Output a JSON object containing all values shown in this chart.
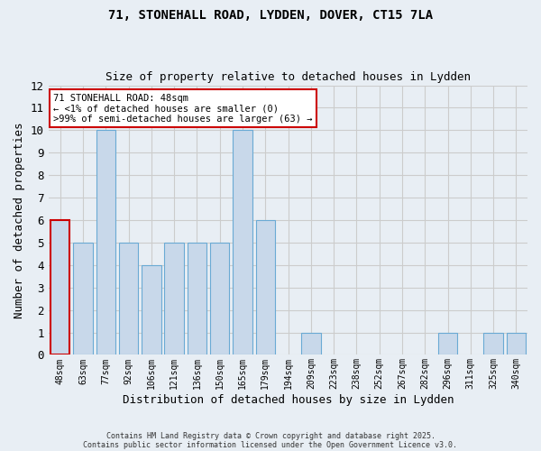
{
  "title": "71, STONEHALL ROAD, LYDDEN, DOVER, CT15 7LA",
  "subtitle": "Size of property relative to detached houses in Lydden",
  "xlabel": "Distribution of detached houses by size in Lydden",
  "ylabel": "Number of detached properties",
  "categories": [
    "48sqm",
    "63sqm",
    "77sqm",
    "92sqm",
    "106sqm",
    "121sqm",
    "136sqm",
    "150sqm",
    "165sqm",
    "179sqm",
    "194sqm",
    "209sqm",
    "223sqm",
    "238sqm",
    "252sqm",
    "267sqm",
    "282sqm",
    "296sqm",
    "311sqm",
    "325sqm",
    "340sqm"
  ],
  "values": [
    6,
    5,
    10,
    5,
    4,
    5,
    5,
    5,
    10,
    6,
    0,
    1,
    0,
    0,
    0,
    0,
    0,
    1,
    0,
    1,
    1
  ],
  "highlight_index": 0,
  "bar_color": "#c8d8ea",
  "bar_edge_color": "#6aaad4",
  "highlight_edge_color": "#cc0000",
  "highlight_edge_width": 1.5,
  "bar_edge_width": 0.8,
  "ylim": [
    0,
    12
  ],
  "yticks": [
    0,
    1,
    2,
    3,
    4,
    5,
    6,
    7,
    8,
    9,
    10,
    11,
    12
  ],
  "grid_color": "#cccccc",
  "bg_color": "#e8eef4",
  "annotation_text": "71 STONEHALL ROAD: 48sqm\n← <1% of detached houses are smaller (0)\n>99% of semi-detached houses are larger (63) →",
  "footer1": "Contains HM Land Registry data © Crown copyright and database right 2025.",
  "footer2": "Contains public sector information licensed under the Open Government Licence v3.0."
}
